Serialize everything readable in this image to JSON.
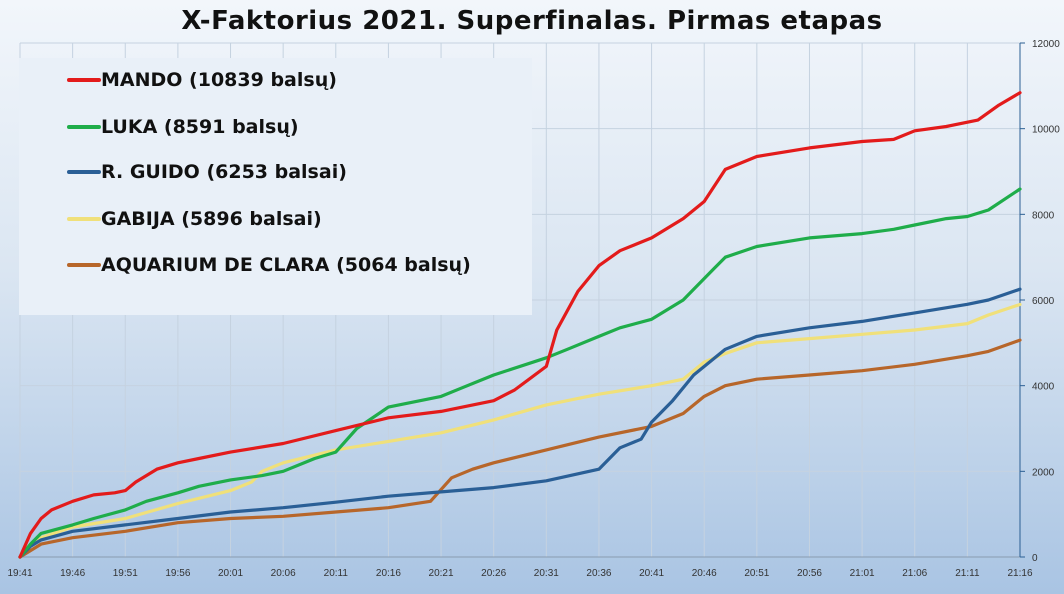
{
  "chart_data": {
    "type": "line",
    "title": "X-Faktorius 2021. Superfinalas. Pirmas etapas",
    "x_ticks": [
      "19:41",
      "19:46",
      "19:51",
      "19:56",
      "20:01",
      "20:06",
      "20:11",
      "20:16",
      "20:21",
      "20:26",
      "20:31",
      "20:36",
      "20:41",
      "20:46",
      "20:51",
      "20:56",
      "21:01",
      "21:06",
      "21:11",
      "21:16"
    ],
    "y_ticks": [
      "0",
      "2000",
      "4000",
      "6000",
      "8000",
      "10000",
      "12000"
    ],
    "ylim": [
      0,
      12000
    ],
    "y_axis_side": "right",
    "legend_position": "top-left",
    "grid": true,
    "series": [
      {
        "name": "MANDO (10839 balsų)",
        "color": "#e31b1b",
        "x": [
          "19:41",
          "19:42",
          "19:43",
          "19:44",
          "19:46",
          "19:48",
          "19:50",
          "19:51",
          "19:52",
          "19:54",
          "19:56",
          "19:58",
          "20:01",
          "20:06",
          "20:11",
          "20:16",
          "20:21",
          "20:26",
          "20:28",
          "20:31",
          "20:32",
          "20:34",
          "20:36",
          "20:38",
          "20:41",
          "20:44",
          "20:46",
          "20:48",
          "20:51",
          "20:56",
          "21:01",
          "21:04",
          "21:06",
          "21:09",
          "21:12",
          "21:14",
          "21:16"
        ],
        "values": [
          0,
          550,
          900,
          1100,
          1300,
          1450,
          1500,
          1550,
          1750,
          2050,
          2200,
          2300,
          2450,
          2650,
          2950,
          3250,
          3400,
          3650,
          3900,
          4450,
          5300,
          6200,
          6800,
          7150,
          7450,
          7900,
          8300,
          9050,
          9350,
          9550,
          9700,
          9750,
          9950,
          10050,
          10200,
          10550,
          10839
        ]
      },
      {
        "name": "LUKA (8591 balsų)",
        "color": "#1fad4a",
        "x": [
          "19:41",
          "19:42",
          "19:43",
          "19:46",
          "19:48",
          "19:51",
          "19:53",
          "19:56",
          "19:58",
          "20:01",
          "20:04",
          "20:06",
          "20:09",
          "20:11",
          "20:13",
          "20:16",
          "20:21",
          "20:23",
          "20:26",
          "20:31",
          "20:33",
          "20:36",
          "20:38",
          "20:41",
          "20:44",
          "20:45",
          "20:47",
          "20:48",
          "20:51",
          "20:56",
          "21:01",
          "21:04",
          "21:06",
          "21:09",
          "21:11",
          "21:13",
          "21:16"
        ],
        "values": [
          0,
          300,
          550,
          750,
          900,
          1100,
          1300,
          1500,
          1650,
          1800,
          1900,
          2000,
          2300,
          2450,
          3000,
          3500,
          3750,
          3950,
          4250,
          4650,
          4850,
          5150,
          5350,
          5550,
          6000,
          6250,
          6750,
          7000,
          7250,
          7450,
          7550,
          7650,
          7750,
          7900,
          7950,
          8100,
          8591
        ]
      },
      {
        "name": "R. GUIDO (6253 balsai)",
        "color": "#2a5f96",
        "x": [
          "19:41",
          "19:42",
          "19:43",
          "19:46",
          "19:51",
          "19:56",
          "20:01",
          "20:06",
          "20:11",
          "20:16",
          "20:21",
          "20:26",
          "20:31",
          "20:36",
          "20:38",
          "20:40",
          "20:41",
          "20:43",
          "20:45",
          "20:48",
          "20:51",
          "20:56",
          "21:01",
          "21:06",
          "21:11",
          "21:13",
          "21:16"
        ],
        "values": [
          0,
          250,
          400,
          600,
          750,
          900,
          1050,
          1150,
          1280,
          1420,
          1520,
          1620,
          1780,
          2050,
          2550,
          2750,
          3150,
          3650,
          4250,
          4850,
          5150,
          5350,
          5500,
          5700,
          5900,
          6000,
          6253
        ]
      },
      {
        "name": "GABIJA (5896 balsai)",
        "color": "#f0e07a",
        "x": [
          "19:41",
          "19:42",
          "19:43",
          "19:46",
          "19:51",
          "19:56",
          "20:01",
          "20:03",
          "20:04",
          "20:06",
          "20:11",
          "20:16",
          "20:21",
          "20:26",
          "20:31",
          "20:36",
          "20:41",
          "20:44",
          "20:46",
          "20:48",
          "20:51",
          "20:56",
          "21:01",
          "21:06",
          "21:11",
          "21:13",
          "21:16"
        ],
        "values": [
          0,
          300,
          450,
          700,
          900,
          1250,
          1550,
          1750,
          2000,
          2200,
          2500,
          2700,
          2900,
          3200,
          3550,
          3800,
          4000,
          4150,
          4550,
          4750,
          5000,
          5100,
          5200,
          5300,
          5450,
          5650,
          5896
        ]
      },
      {
        "name": "AQUARIUM DE CLARA (5064 balsų)",
        "color": "#b7662a",
        "x": [
          "19:41",
          "19:42",
          "19:43",
          "19:46",
          "19:51",
          "19:56",
          "20:01",
          "20:06",
          "20:11",
          "20:16",
          "20:20",
          "20:22",
          "20:24",
          "20:26",
          "20:31",
          "20:36",
          "20:41",
          "20:44",
          "20:46",
          "20:48",
          "20:51",
          "20:56",
          "21:01",
          "21:06",
          "21:11",
          "21:13",
          "21:16"
        ],
        "values": [
          0,
          150,
          300,
          450,
          600,
          800,
          900,
          950,
          1050,
          1150,
          1300,
          1850,
          2050,
          2200,
          2500,
          2800,
          3050,
          3350,
          3750,
          4000,
          4150,
          4250,
          4350,
          4500,
          4700,
          4800,
          5064
        ]
      }
    ]
  }
}
